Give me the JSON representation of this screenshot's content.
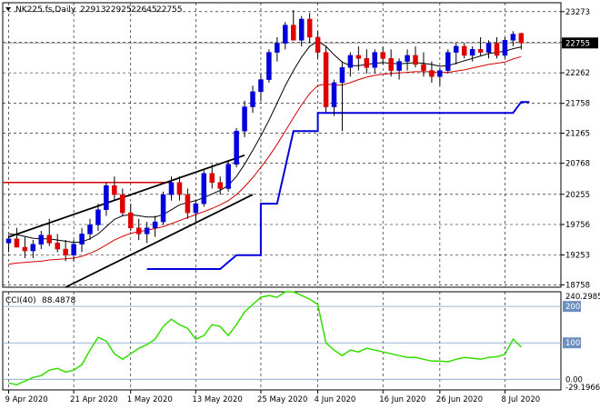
{
  "chart_data": [
    {
      "type": "candlestick",
      "panel": "main",
      "title": "NK225.fs,Daily",
      "ohlc_header": [
        "22913",
        "22925",
        "22645",
        "22755"
      ],
      "current_price_label": "22755",
      "current_price": 22755,
      "y_tick_labels": [
        "23273",
        "22766",
        "22262",
        "21758",
        "21265",
        "20768",
        "20255",
        "19756",
        "19253",
        "18758"
      ],
      "ylim": [
        18720,
        23420
      ],
      "x_tick_labels": [
        "9 Apr 2020",
        "21 Apr 2020",
        "1 May 2020",
        "13 May 2020",
        "25 May 2020",
        "4 Jun 2020",
        "16 Jun 2020",
        "26 Jun 2020",
        "8 Jul 2020"
      ],
      "x_tick_index": [
        0,
        8,
        15,
        23,
        31,
        38,
        46,
        53,
        61
      ],
      "candles": [
        [
          19450,
          19580,
          19300,
          19520
        ],
        [
          19520,
          19700,
          19400,
          19380
        ],
        [
          19380,
          19550,
          19200,
          19320
        ],
        [
          19320,
          19500,
          19200,
          19430
        ],
        [
          19430,
          19650,
          19350,
          19580
        ],
        [
          19580,
          19850,
          19400,
          19450
        ],
        [
          19450,
          19600,
          19300,
          19350
        ],
        [
          19350,
          19500,
          19150,
          19250
        ],
        [
          19250,
          19500,
          19150,
          19430
        ],
        [
          19430,
          19700,
          19300,
          19600
        ],
        [
          19600,
          19850,
          19500,
          19750
        ],
        [
          19750,
          20100,
          19650,
          20000
        ],
        [
          20000,
          20450,
          19900,
          20400
        ],
        [
          20400,
          20550,
          20150,
          20250
        ],
        [
          20250,
          20350,
          19900,
          19950
        ],
        [
          19950,
          20100,
          19650,
          19700
        ],
        [
          19700,
          19850,
          19500,
          19600
        ],
        [
          19600,
          19800,
          19450,
          19700
        ],
        [
          19700,
          19900,
          19550,
          19800
        ],
        [
          19800,
          20300,
          19750,
          20250
        ],
        [
          20250,
          20550,
          20150,
          20450
        ],
        [
          20450,
          20550,
          20150,
          20250
        ],
        [
          20250,
          20350,
          19850,
          19950
        ],
        [
          19950,
          20150,
          19800,
          20100
        ],
        [
          20100,
          20650,
          20050,
          20600
        ],
        [
          20600,
          20750,
          20350,
          20450
        ],
        [
          20450,
          20550,
          20250,
          20350
        ],
        [
          20350,
          20800,
          20300,
          20750
        ],
        [
          20750,
          21350,
          20700,
          21300
        ],
        [
          21300,
          21800,
          21200,
          21700
        ],
        [
          21700,
          22050,
          21600,
          21950
        ],
        [
          21950,
          22250,
          21800,
          22150
        ],
        [
          22150,
          22650,
          22100,
          22600
        ],
        [
          22600,
          22850,
          22450,
          22750
        ],
        [
          22750,
          23100,
          22650,
          23050
        ],
        [
          23050,
          23300,
          22800,
          22800
        ],
        [
          22800,
          23200,
          22700,
          23150
        ],
        [
          23150,
          23250,
          22750,
          22850
        ],
        [
          22850,
          22950,
          22500,
          22600
        ],
        [
          22600,
          22700,
          21600,
          21700
        ],
        [
          21700,
          22150,
          21550,
          22100
        ],
        [
          22100,
          22450,
          21300,
          22350
        ],
        [
          22350,
          22600,
          22200,
          22550
        ],
        [
          22550,
          22700,
          22300,
          22500
        ],
        [
          22500,
          22650,
          22250,
          22350
        ],
        [
          22350,
          22650,
          22250,
          22600
        ],
        [
          22600,
          22700,
          22400,
          22500
        ],
        [
          22500,
          22650,
          22200,
          22300
        ],
        [
          22300,
          22500,
          22150,
          22450
        ],
        [
          22450,
          22650,
          22300,
          22550
        ],
        [
          22550,
          22700,
          22350,
          22400
        ],
        [
          22400,
          22600,
          22200,
          22300
        ],
        [
          22300,
          22450,
          22100,
          22200
        ],
        [
          22200,
          22350,
          22050,
          22300
        ],
        [
          22300,
          22650,
          22250,
          22600
        ],
        [
          22600,
          22750,
          22400,
          22700
        ],
        [
          22700,
          22750,
          22500,
          22550
        ],
        [
          22550,
          22700,
          22450,
          22650
        ],
        [
          22650,
          22850,
          22550,
          22600
        ],
        [
          22600,
          22800,
          22500,
          22750
        ],
        [
          22750,
          22850,
          22500,
          22550
        ],
        [
          22550,
          22850,
          22500,
          22800
        ],
        [
          22800,
          22950,
          22700,
          22900
        ],
        [
          22913,
          22925,
          22645,
          22755
        ]
      ],
      "ma_fast": [
        19600,
        19590,
        19560,
        19530,
        19520,
        19520,
        19500,
        19480,
        19460,
        19470,
        19520,
        19600,
        19720,
        19840,
        19900,
        19920,
        19900,
        19880,
        19880,
        19920,
        20000,
        20080,
        20120,
        20150,
        20200,
        20260,
        20320,
        20400,
        20550,
        20750,
        20980,
        21220,
        21480,
        21760,
        22050,
        22300,
        22520,
        22700,
        22780,
        22700,
        22560,
        22440,
        22380,
        22380,
        22400,
        22420,
        22430,
        22420,
        22410,
        22420,
        22430,
        22420,
        22400,
        22370,
        22380,
        22420,
        22460,
        22500,
        22540,
        22580,
        22600,
        22620,
        22660,
        22690
      ],
      "ma_slow": [
        19100,
        19120,
        19130,
        19140,
        19150,
        19170,
        19180,
        19190,
        19200,
        19230,
        19280,
        19340,
        19420,
        19500,
        19560,
        19610,
        19640,
        19660,
        19690,
        19720,
        19770,
        19820,
        19870,
        19920,
        19970,
        20020,
        20080,
        20150,
        20250,
        20380,
        20530,
        20700,
        20880,
        21080,
        21300,
        21520,
        21730,
        21920,
        22050,
        22080,
        22060,
        22060,
        22100,
        22150,
        22190,
        22220,
        22240,
        22250,
        22260,
        22270,
        22280,
        22280,
        22280,
        22270,
        22270,
        22290,
        22310,
        22340,
        22370,
        22400,
        22420,
        22440,
        22490,
        22530
      ],
      "step_line": [
        [
          17,
          19020
        ],
        [
          26,
          19020
        ],
        [
          28,
          19250
        ],
        [
          31,
          19250
        ],
        [
          31,
          20100
        ],
        [
          33,
          20100
        ],
        [
          35,
          21300
        ],
        [
          38,
          21300
        ],
        [
          38,
          21600
        ],
        [
          62,
          21600
        ],
        [
          63,
          21780
        ],
        [
          64,
          21780
        ]
      ],
      "horizontal_line": {
        "value": 20450,
        "from_index": 0,
        "to_index": 20
      },
      "trendlines": [
        {
          "from": [
            0,
            19550
          ],
          "to": [
            29,
            20900
          ]
        },
        {
          "from": [
            7,
            18720
          ],
          "to": [
            30,
            20250
          ]
        }
      ]
    },
    {
      "type": "line",
      "panel": "indicator",
      "title": "CCI(40)",
      "value_label": "88.4878",
      "y_tick_labels": [
        "240.2985",
        "200",
        "100",
        "0.00",
        "-29.1966"
      ],
      "ylim": [
        -29.1966,
        240.2985
      ],
      "levels": [
        200,
        100,
        0
      ],
      "values": [
        -10,
        -15,
        -5,
        5,
        10,
        25,
        30,
        20,
        25,
        40,
        80,
        115,
        105,
        70,
        55,
        70,
        85,
        95,
        110,
        145,
        165,
        150,
        140,
        110,
        120,
        150,
        145,
        120,
        150,
        185,
        205,
        225,
        230,
        225,
        240,
        240,
        230,
        220,
        205,
        100,
        80,
        65,
        80,
        75,
        85,
        80,
        75,
        70,
        65,
        60,
        60,
        55,
        50,
        50,
        48,
        55,
        60,
        58,
        55,
        60,
        62,
        68,
        110,
        88.4878
      ]
    }
  ]
}
